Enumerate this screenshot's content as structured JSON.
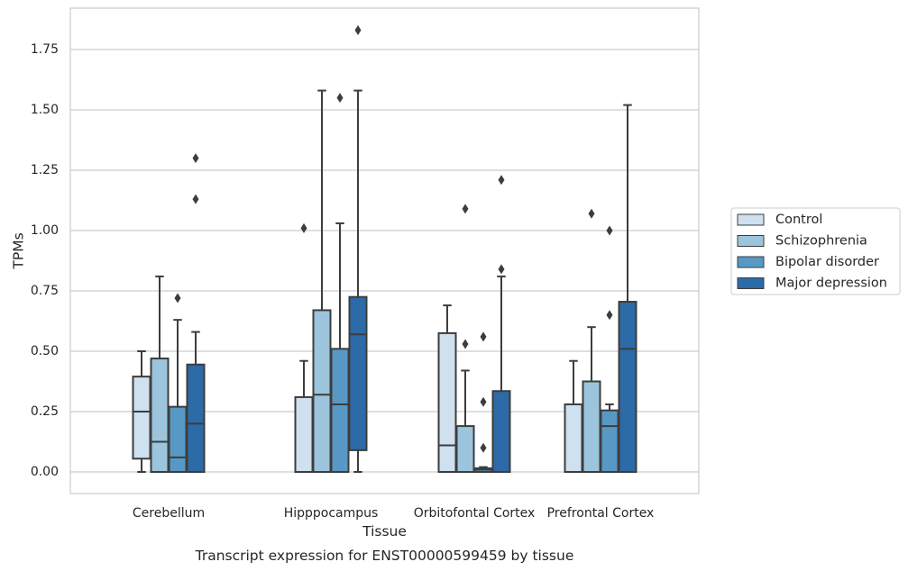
{
  "chart_data": {
    "type": "box",
    "title": "",
    "caption": "Transcript expression for ENST00000599459 by tissue",
    "xlabel": "Tissue",
    "ylabel": "TPMs",
    "ylim": [
      -0.09,
      1.93
    ],
    "yticks": [
      0.0,
      0.25,
      0.5,
      0.75,
      1.0,
      1.25,
      1.5,
      1.75
    ],
    "ytick_labels": [
      "0.00",
      "0.25",
      "0.50",
      "0.75",
      "1.00",
      "1.25",
      "1.50",
      "1.75"
    ],
    "grid": "horizontal",
    "legend_position": "right",
    "categories": [
      "Cerebellum",
      "Hipppocampus",
      "Orbitofontal Cortex",
      "Prefrontal Cortex"
    ],
    "series": [
      {
        "name": "Control",
        "color": "#cfe0ef",
        "boxes": [
          {
            "whisker_low": 0.0,
            "q1": 0.055,
            "median": 0.25,
            "q3": 0.395,
            "whisker_high": 0.5,
            "outliers": []
          },
          {
            "whisker_low": 0.0,
            "q1": 0.0,
            "median": 0.0,
            "q3": 0.31,
            "whisker_high": 0.46,
            "outliers": [
              1.01
            ]
          },
          {
            "whisker_low": 0.0,
            "q1": 0.0,
            "median": 0.11,
            "q3": 0.575,
            "whisker_high": 0.69,
            "outliers": []
          },
          {
            "whisker_low": 0.0,
            "q1": 0.0,
            "median": 0.0,
            "q3": 0.28,
            "whisker_high": 0.46,
            "outliers": []
          }
        ]
      },
      {
        "name": "Schizophrenia",
        "color": "#9cc4dc",
        "boxes": [
          {
            "whisker_low": 0.0,
            "q1": 0.0,
            "median": 0.125,
            "q3": 0.47,
            "whisker_high": 0.81,
            "outliers": []
          },
          {
            "whisker_low": 0.0,
            "q1": 0.0,
            "median": 0.32,
            "q3": 0.67,
            "whisker_high": 1.58,
            "outliers": []
          },
          {
            "whisker_low": 0.0,
            "q1": 0.0,
            "median": 0.0,
            "q3": 0.19,
            "whisker_high": 0.42,
            "outliers": [
              0.53,
              1.09
            ]
          },
          {
            "whisker_low": 0.0,
            "q1": 0.0,
            "median": 0.0,
            "q3": 0.375,
            "whisker_high": 0.6,
            "outliers": [
              1.07
            ]
          }
        ]
      },
      {
        "name": "Bipolar disorder",
        "color": "#5898c4",
        "boxes": [
          {
            "whisker_low": 0.0,
            "q1": 0.0,
            "median": 0.06,
            "q3": 0.27,
            "whisker_high": 0.63,
            "outliers": [
              0.72
            ]
          },
          {
            "whisker_low": 0.0,
            "q1": 0.0,
            "median": 0.28,
            "q3": 0.51,
            "whisker_high": 1.03,
            "outliers": [
              1.55
            ]
          },
          {
            "whisker_low": 0.0,
            "q1": 0.0,
            "median": 0.01,
            "q3": 0.015,
            "whisker_high": 0.02,
            "outliers": [
              0.1,
              0.29,
              0.56
            ]
          },
          {
            "whisker_low": 0.0,
            "q1": 0.0,
            "median": 0.19,
            "q3": 0.255,
            "whisker_high": 0.28,
            "outliers": [
              0.65,
              1.0
            ]
          }
        ]
      },
      {
        "name": "Major depression",
        "color": "#2c6aa8",
        "boxes": [
          {
            "whisker_low": 0.0,
            "q1": 0.0,
            "median": 0.2,
            "q3": 0.445,
            "whisker_high": 0.58,
            "outliers": [
              1.13,
              1.3
            ]
          },
          {
            "whisker_low": 0.0,
            "q1": 0.09,
            "median": 0.57,
            "q3": 0.725,
            "whisker_high": 1.58,
            "outliers": [
              1.83
            ]
          },
          {
            "whisker_low": 0.0,
            "q1": 0.0,
            "median": 0.0,
            "q3": 0.335,
            "whisker_high": 0.81,
            "outliers": [
              0.84,
              1.21
            ]
          },
          {
            "whisker_low": 0.0,
            "q1": 0.0,
            "median": 0.51,
            "q3": 0.705,
            "whisker_high": 1.52,
            "outliers": []
          }
        ]
      }
    ]
  }
}
